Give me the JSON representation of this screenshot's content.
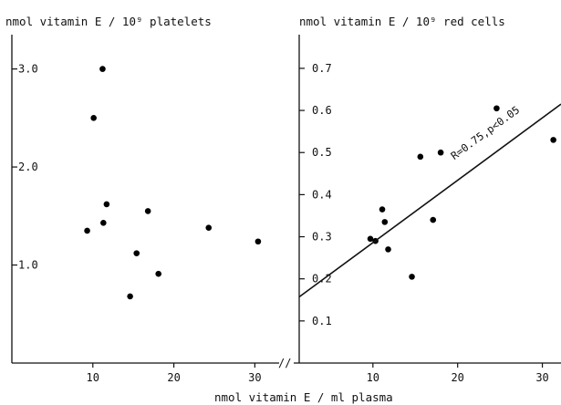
{
  "chart_data": [
    {
      "type": "scatter",
      "title": "nmol vitamin E / 10⁹ platelets",
      "xlabel": "nmol vitamin E / ml plasma",
      "xlim": [
        0,
        33
      ],
      "ylim": [
        0,
        3.35
      ],
      "x_ticks": [
        10,
        20,
        30
      ],
      "y_ticks": [
        1.0,
        2.0,
        3.0
      ],
      "y_tick_labels": [
        "1.0",
        "2.0",
        "3.0"
      ],
      "points": [
        {
          "x": 9.3,
          "y": 1.35
        },
        {
          "x": 10.1,
          "y": 2.5
        },
        {
          "x": 11.2,
          "y": 3.0
        },
        {
          "x": 11.3,
          "y": 1.43
        },
        {
          "x": 11.7,
          "y": 1.62
        },
        {
          "x": 14.6,
          "y": 0.68
        },
        {
          "x": 15.4,
          "y": 1.12
        },
        {
          "x": 16.8,
          "y": 1.55
        },
        {
          "x": 18.1,
          "y": 0.91
        },
        {
          "x": 24.3,
          "y": 1.38
        },
        {
          "x": 30.4,
          "y": 1.24
        }
      ]
    },
    {
      "type": "scatter",
      "title": "nmol vitamin E / 10⁹ red cells",
      "xlabel": "nmol vitamin E / ml plasma",
      "xlim": [
        1.3,
        32.2
      ],
      "ylim": [
        0,
        0.78
      ],
      "x_ticks": [
        10,
        20,
        30
      ],
      "y_ticks": [
        0.1,
        0.2,
        0.3,
        0.4,
        0.5,
        0.6,
        0.7
      ],
      "y_tick_labels": [
        "0.1",
        "0.2",
        "0.3",
        "0.4",
        "0.5",
        "0.6",
        "0.7"
      ],
      "points": [
        {
          "x": 9.7,
          "y": 0.295
        },
        {
          "x": 10.3,
          "y": 0.29
        },
        {
          "x": 11.1,
          "y": 0.365
        },
        {
          "x": 11.4,
          "y": 0.335
        },
        {
          "x": 11.8,
          "y": 0.27
        },
        {
          "x": 14.6,
          "y": 0.205
        },
        {
          "x": 15.6,
          "y": 0.49
        },
        {
          "x": 17.1,
          "y": 0.34
        },
        {
          "x": 18.0,
          "y": 0.5
        },
        {
          "x": 24.6,
          "y": 0.605
        },
        {
          "x": 31.3,
          "y": 0.53
        }
      ],
      "regression": {
        "x": [
          1.3,
          32.2
        ],
        "y": [
          0.157,
          0.615
        ]
      },
      "annotation": "R=0.75,p<0.05",
      "annotation_at": {
        "x": 23.5,
        "y": 0.54
      }
    }
  ],
  "axis_break_label": "//",
  "shared_xlabel": "nmol vitamin E / ml plasma"
}
